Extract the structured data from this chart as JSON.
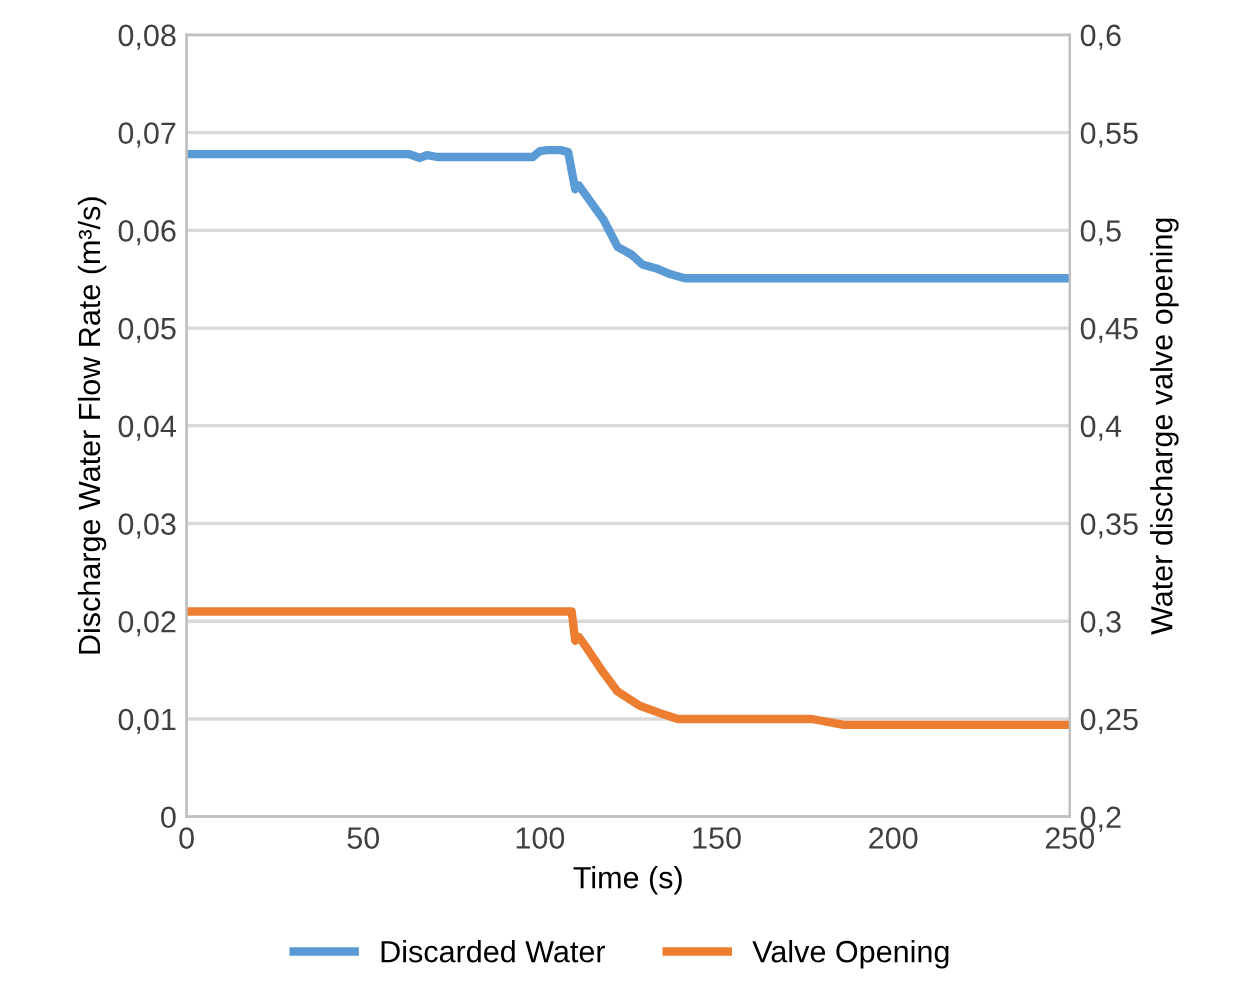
{
  "chart_data": {
    "type": "line",
    "xlabel": "Time (s)",
    "ylabel": "Discharge Water Flow Rate (m³/s)",
    "y2label": "Water discharge valve opening",
    "xlim": [
      0,
      250
    ],
    "xticks": [
      0,
      50,
      100,
      150,
      200,
      250
    ],
    "ylim": [
      0,
      0.08
    ],
    "yticks": [
      0,
      {
        "value": 0.01,
        "label": "0,01"
      },
      {
        "value": 0.02,
        "label": "0,02"
      },
      {
        "value": 0.03,
        "label": "0,03"
      },
      {
        "value": 0.04,
        "label": "0,04"
      },
      {
        "value": 0.05,
        "label": "0,05"
      },
      {
        "value": 0.06,
        "label": "0,06"
      },
      {
        "value": 0.07,
        "label": "0,07"
      },
      {
        "value": 0.08,
        "label": "0,08"
      }
    ],
    "y2lim": [
      0.2,
      0.6
    ],
    "y2ticks": [
      {
        "value": 0.2,
        "label": "0,2"
      },
      {
        "value": 0.25,
        "label": "0,25"
      },
      {
        "value": 0.3,
        "label": "0,3"
      },
      {
        "value": 0.35,
        "label": "0,35"
      },
      {
        "value": 0.4,
        "label": "0,4"
      },
      {
        "value": 0.45,
        "label": "0,45"
      },
      {
        "value": 0.5,
        "label": "0,5"
      },
      {
        "value": 0.55,
        "label": "0,55"
      },
      {
        "value": 0.6,
        "label": "0,6"
      }
    ],
    "grid": "y",
    "legend": "bottom",
    "marker": "none",
    "line_style": "solid",
    "series": [
      {
        "name": "Discarded Water",
        "color": "#5b9bd5",
        "x": [
          0,
          63,
          66,
          68,
          71,
          98,
          100,
          102,
          106,
          108,
          110,
          111,
          113,
          118,
          122,
          126,
          129,
          133,
          137,
          141,
          250
        ],
        "values": [
          0.0678,
          0.0678,
          0.0674,
          0.0677,
          0.0675,
          0.0675,
          0.0681,
          0.0682,
          0.0682,
          0.068,
          0.0642,
          0.0646,
          0.0636,
          0.0611,
          0.0583,
          0.0575,
          0.0565,
          0.0561,
          0.0555,
          0.0551,
          0.0551
        ]
      },
      {
        "name": "Valve Opening",
        "color": "#ed7d31",
        "axis": "y2",
        "x": [
          0,
          109,
          110,
          111,
          113,
          118,
          122,
          128,
          134,
          139,
          177,
          186,
          250
        ],
        "values": [
          0.305,
          0.305,
          0.29,
          0.292,
          0.287,
          0.2736,
          0.264,
          0.257,
          0.253,
          0.25,
          0.25,
          0.247,
          0.247
        ]
      }
    ]
  }
}
